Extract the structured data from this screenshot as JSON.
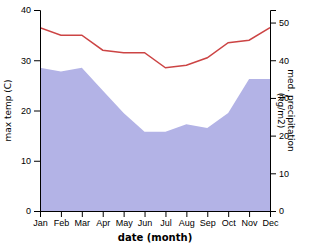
{
  "chart_data": {
    "type": "line",
    "xlabel": "date (month)",
    "ylabel": "max temp (C)",
    "y2label": "med. precipitation\n(kg/m2)",
    "categories": [
      "Jan",
      "Feb",
      "Mar",
      "Apr",
      "May",
      "Jun",
      "Jul",
      "Aug",
      "Sep",
      "Oct",
      "Nov",
      "Dec"
    ],
    "series": [
      {
        "type": "area",
        "axis": "y2",
        "color": "#b3b3e6",
        "values": [
          38,
          37,
          38,
          32,
          26,
          21,
          21,
          23,
          22,
          26,
          35,
          35
        ]
      },
      {
        "type": "line",
        "color": "#cc4444",
        "values": [
          36.5,
          35,
          35,
          32,
          31.5,
          31.5,
          28.5,
          29,
          30.5,
          33.5,
          34,
          36.5
        ]
      }
    ],
    "ylim": [
      0,
      40
    ],
    "yticks": [
      0,
      10,
      20,
      30,
      40
    ],
    "y2lim": [
      0,
      53.33
    ],
    "y2ticks": [
      0,
      10,
      20,
      30,
      40,
      50
    ],
    "grid": false
  }
}
